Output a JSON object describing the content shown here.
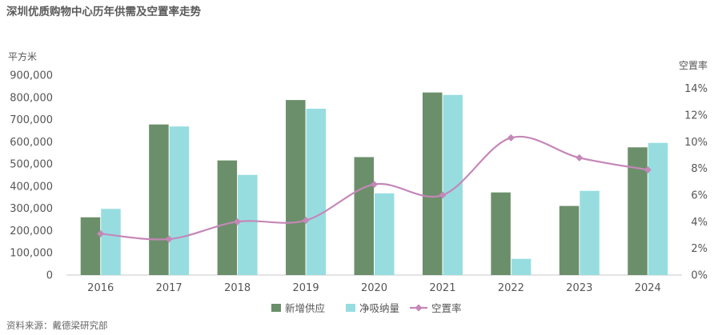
{
  "chart_data": {
    "type": "bar",
    "title": "深圳优质购物中心历年供需及空置率走势",
    "left_axis_unit": "平方米",
    "right_axis_unit": "空置率",
    "source": "资料来源：戴德梁研究部",
    "categories": [
      "2016",
      "2017",
      "2018",
      "2019",
      "2020",
      "2021",
      "2022",
      "2023",
      "2024"
    ],
    "left_axis": {
      "ylim": [
        0,
        900000
      ],
      "tick_values": [
        0,
        100000,
        200000,
        300000,
        400000,
        500000,
        600000,
        700000,
        800000,
        900000
      ],
      "tick_labels": [
        "0",
        "100,000",
        "200,000",
        "300,000",
        "400,000",
        "500,000",
        "600,000",
        "700,000",
        "800,000",
        "900,000"
      ]
    },
    "right_axis": {
      "ylim": [
        0,
        0.15
      ],
      "tick_values": [
        0,
        0.02,
        0.04,
        0.06,
        0.08,
        0.1,
        0.12,
        0.14
      ],
      "tick_labels": [
        "0%",
        "2%",
        "4%",
        "6%",
        "8%",
        "10%",
        "12%",
        "14%"
      ]
    },
    "series": [
      {
        "name": "新增供应",
        "kind": "bar",
        "axis": "left",
        "color": "#6b8f6a",
        "values": [
          260000,
          678000,
          516000,
          788000,
          531000,
          822000,
          372000,
          311000,
          575000
        ]
      },
      {
        "name": "净吸纳量",
        "kind": "bar",
        "axis": "left",
        "color": "#97dde0",
        "values": [
          298000,
          669000,
          451000,
          749000,
          368000,
          811000,
          73000,
          379000,
          595000
        ]
      },
      {
        "name": "空置率",
        "kind": "line",
        "axis": "right",
        "color": "#c587b8",
        "values": [
          0.031,
          0.027,
          0.04,
          0.041,
          0.068,
          0.06,
          0.103,
          0.088,
          0.079
        ]
      }
    ],
    "legend_position": "bottom",
    "grid": false
  }
}
